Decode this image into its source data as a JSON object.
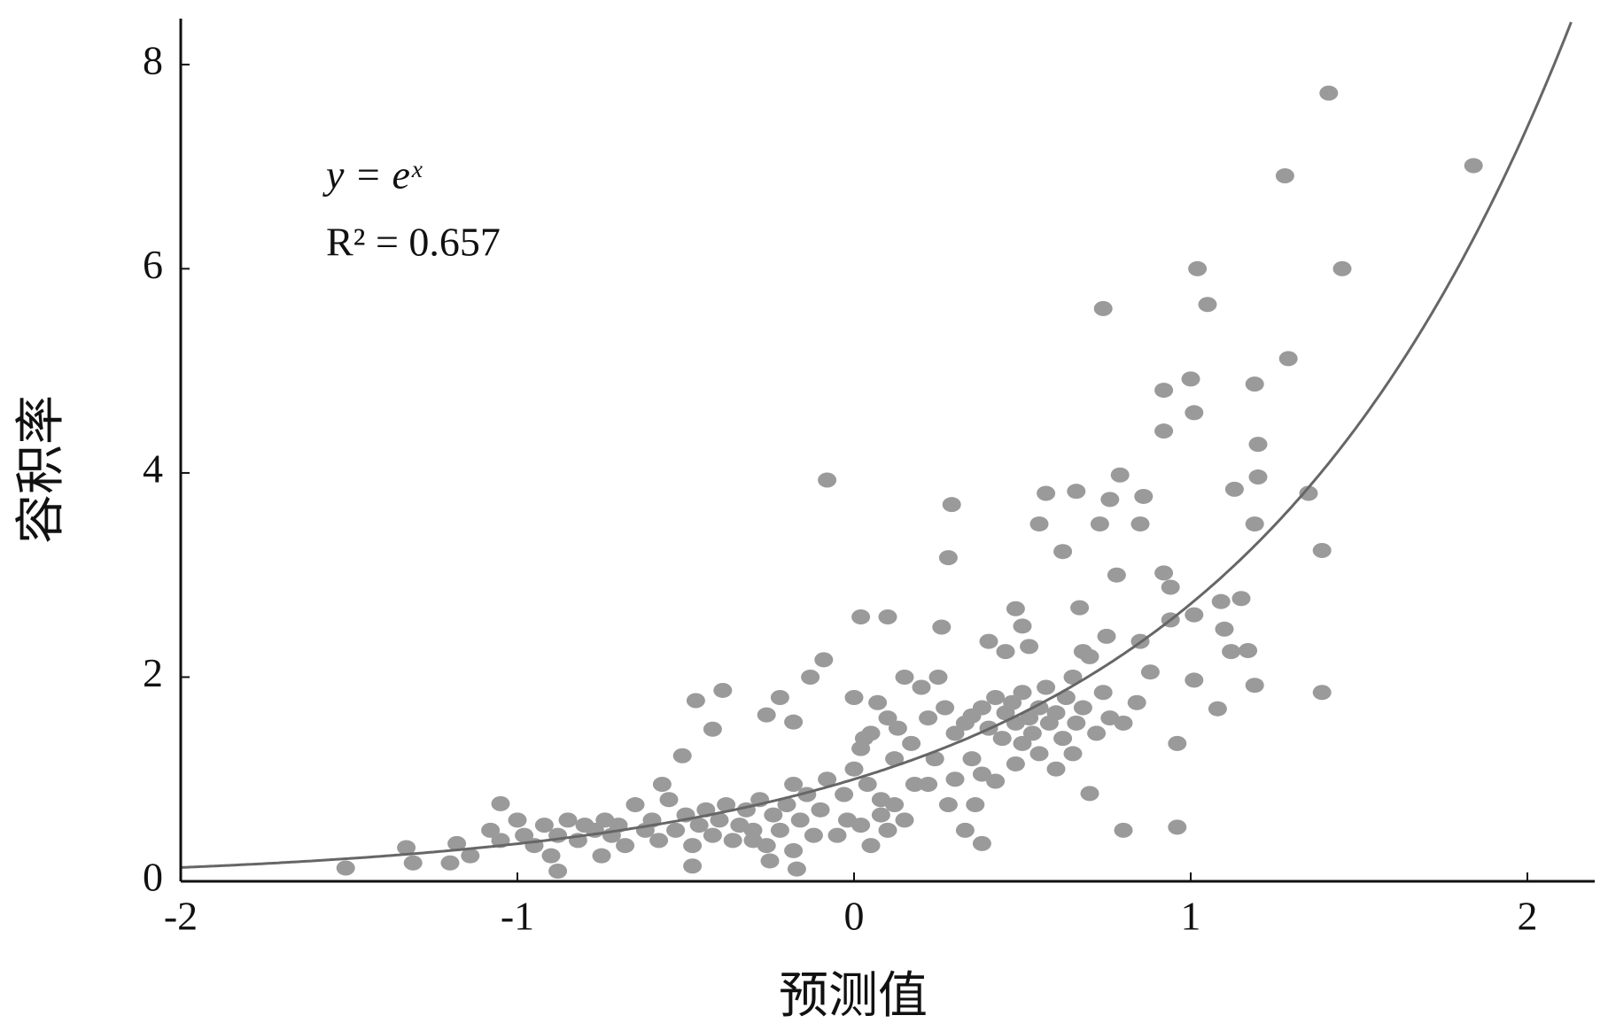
{
  "chart_data": {
    "type": "scatter",
    "xlabel": "预测值",
    "ylabel": "容积率",
    "annotations": [
      "y = eˣ",
      "R² = 0.657"
    ],
    "xlim": [
      -2,
      2.2
    ],
    "xticks": [
      -2,
      -1,
      0,
      1,
      2
    ],
    "ylim": [
      0,
      8.45
    ],
    "yticks": [
      0,
      2,
      4,
      6,
      8
    ],
    "color": "#9a9a9a",
    "line_color": "#666666",
    "x": [
      1.41,
      1.84,
      1.28,
      1.02,
      1.45,
      1.05,
      0.74,
      1.29,
      1.0,
      1.19,
      0.92,
      1.01,
      0.92,
      1.2,
      -0.08,
      0.79,
      1.2,
      0.57,
      0.66,
      1.13,
      1.35,
      0.29,
      0.76,
      0.86,
      0.55,
      0.73,
      0.85,
      1.19,
      0.28,
      1.39,
      0.62,
      0.78,
      0.92,
      0.94,
      0.02,
      0.1,
      0.48,
      0.67,
      0.94,
      1.01,
      1.09,
      1.15,
      0.26,
      1.1,
      -0.09,
      1.12,
      1.17,
      1.39,
      1.19,
      1.01,
      1.08,
      0.96,
      0.8,
      0.96,
      0.7,
      -0.39,
      -0.47,
      -0.42,
      -0.51,
      -0.26,
      -0.18,
      -0.22,
      -0.13,
      -1.51,
      -1.33,
      -1.31,
      -1.2,
      -1.18,
      -1.14,
      -1.05,
      -0.88,
      -0.17,
      0.38,
      0.3,
      0.33,
      0.35,
      0.38,
      0.4,
      0.42,
      0.44,
      0.45,
      0.47,
      0.48,
      0.5,
      0.5,
      0.52,
      0.53,
      0.55,
      0.55,
      0.57,
      0.58,
      0.6,
      0.62,
      0.63,
      0.65,
      0.66,
      0.68,
      0.7,
      0.72,
      0.74,
      0.76,
      0.45,
      0.5,
      0.52,
      0.4,
      0.35,
      0.38,
      0.42,
      0.48,
      0.6,
      0.65,
      0.8,
      0.84,
      0.88,
      0.85,
      0.75,
      0.68,
      0.0,
      0.02,
      0.04,
      0.05,
      0.07,
      0.08,
      0.1,
      0.12,
      0.13,
      0.15,
      0.17,
      0.18,
      0.2,
      0.22,
      0.24,
      0.25,
      0.27,
      0.28,
      0.3,
      0.02,
      0.05,
      0.08,
      0.1,
      0.12,
      0.15,
      0.22,
      0.33,
      0.36,
      -0.02,
      -0.05,
      -0.03,
      0.0,
      0.03,
      -0.6,
      -0.58,
      -0.55,
      -0.53,
      -0.5,
      -0.48,
      -0.46,
      -0.44,
      -0.42,
      -0.4,
      -0.38,
      -0.36,
      -0.34,
      -0.32,
      -0.3,
      -0.28,
      -0.26,
      -0.24,
      -0.22,
      -0.2,
      -0.18,
      -0.16,
      -0.14,
      -0.12,
      -0.1,
      -0.08,
      -0.18,
      -0.57,
      -0.48,
      -0.3,
      -0.25,
      -1.08,
      -1.05,
      -1.0,
      -0.98,
      -0.95,
      -0.92,
      -0.88,
      -0.85,
      -0.82,
      -0.8,
      -0.77,
      -0.74,
      -0.72,
      -0.7,
      -0.68,
      -0.65,
      -0.62,
      -0.75,
      -0.9
    ],
    "values": [
      7.72,
      7.01,
      6.91,
      6.0,
      6.0,
      5.65,
      5.61,
      5.12,
      4.92,
      4.87,
      4.81,
      4.59,
      4.41,
      4.28,
      3.93,
      3.98,
      3.96,
      3.8,
      3.82,
      3.84,
      3.8,
      3.69,
      3.74,
      3.77,
      3.5,
      3.5,
      3.5,
      3.5,
      3.17,
      3.24,
      3.23,
      3.0,
      3.02,
      2.88,
      2.59,
      2.59,
      2.67,
      2.68,
      2.56,
      2.61,
      2.74,
      2.77,
      2.49,
      2.47,
      2.17,
      2.25,
      2.26,
      1.85,
      1.92,
      1.97,
      1.69,
      1.35,
      0.5,
      0.53,
      0.86,
      1.87,
      1.77,
      1.49,
      1.23,
      1.63,
      1.56,
      1.8,
      2.0,
      0.13,
      0.33,
      0.18,
      0.18,
      0.37,
      0.25,
      0.76,
      0.1,
      0.12,
      0.37,
      1.45,
      1.55,
      1.62,
      1.7,
      1.5,
      1.8,
      1.4,
      1.65,
      1.75,
      1.55,
      1.35,
      1.85,
      1.6,
      1.45,
      1.7,
      1.25,
      1.9,
      1.55,
      1.65,
      1.4,
      1.8,
      2.0,
      1.55,
      1.7,
      2.2,
      1.45,
      1.85,
      1.6,
      2.25,
      2.5,
      2.3,
      2.35,
      1.2,
      1.05,
      0.98,
      1.15,
      1.1,
      1.25,
      1.55,
      1.75,
      2.05,
      2.35,
      2.4,
      2.25,
      1.1,
      1.3,
      0.95,
      1.45,
      1.75,
      0.8,
      1.6,
      1.2,
      1.5,
      2.0,
      1.35,
      0.95,
      1.9,
      1.6,
      1.2,
      2.0,
      1.7,
      0.75,
      1.0,
      0.55,
      0.35,
      0.65,
      0.5,
      0.75,
      0.6,
      0.95,
      0.5,
      0.75,
      0.6,
      0.45,
      0.85,
      1.8,
      1.4,
      0.6,
      0.4,
      0.8,
      0.5,
      0.65,
      0.35,
      0.55,
      0.7,
      0.45,
      0.6,
      0.75,
      0.4,
      0.55,
      0.7,
      0.5,
      0.8,
      0.35,
      0.65,
      0.5,
      0.75,
      0.3,
      0.6,
      0.85,
      0.45,
      0.7,
      1.0,
      0.95,
      0.95,
      0.15,
      0.4,
      0.2,
      0.5,
      0.4,
      0.6,
      0.45,
      0.35,
      0.55,
      0.45,
      0.6,
      0.4,
      0.55,
      0.5,
      0.6,
      0.45,
      0.55,
      0.35,
      0.75,
      0.5,
      0.25,
      0.25
    ]
  }
}
